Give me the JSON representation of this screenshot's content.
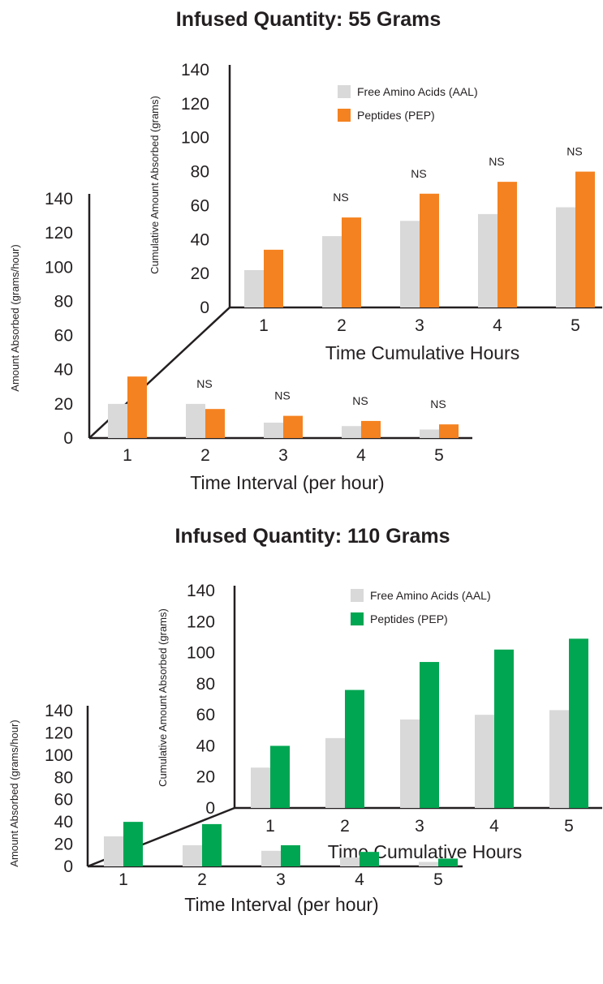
{
  "colors": {
    "aal": "#d9d9d9",
    "pep_55": "#f58220",
    "pep_110": "#00a651",
    "axis": "#231f20"
  },
  "chart_data": [
    {
      "type": "bar",
      "title": "Infused Quantity: 55 Grams",
      "subcharts": {
        "cumulative": {
          "categories": [
            "1",
            "2",
            "3",
            "4",
            "5"
          ],
          "xlabel": "Time Cumulative Hours",
          "ylabel": "Cumulative Amount Absorbed (grams)",
          "ylim": [
            0,
            140
          ],
          "yticks": [
            "0",
            "20",
            "40",
            "60",
            "80",
            "100",
            "120",
            "140"
          ],
          "series": [
            {
              "name": "Free Amino Acids (AAL)",
              "values": [
                22,
                42,
                51,
                55,
                59
              ]
            },
            {
              "name": "Peptides (PEP)",
              "values": [
                34,
                53,
                67,
                74,
                80
              ]
            }
          ],
          "annotations": [
            "",
            "NS",
            "NS",
            "NS",
            "NS"
          ],
          "legend": "top-right"
        },
        "interval": {
          "categories": [
            "1",
            "2",
            "3",
            "4",
            "5"
          ],
          "xlabel": "Time Interval (per hour)",
          "ylabel": "Amount Absorbed (grams/hour)",
          "ylim": [
            0,
            140
          ],
          "yticks": [
            "0",
            "20",
            "40",
            "60",
            "80",
            "100",
            "120",
            "140"
          ],
          "series": [
            {
              "name": "Free Amino Acids (AAL)",
              "values": [
                20,
                20,
                9,
                7,
                5
              ]
            },
            {
              "name": "Peptides (PEP)",
              "values": [
                36,
                17,
                13,
                10,
                8
              ]
            }
          ],
          "annotations": [
            "",
            "NS",
            "NS",
            "NS",
            "NS"
          ]
        }
      }
    },
    {
      "type": "bar",
      "title": "Infused Quantity: 110 Grams",
      "subcharts": {
        "cumulative": {
          "categories": [
            "1",
            "2",
            "3",
            "4",
            "5"
          ],
          "xlabel": "Time Cumulative Hours",
          "ylabel": "Cumulative Amount Absorbed (grams)",
          "ylim": [
            0,
            140
          ],
          "yticks": [
            "0",
            "20",
            "40",
            "60",
            "80",
            "100",
            "120",
            "140"
          ],
          "series": [
            {
              "name": "Free Amino Acids (AAL)",
              "values": [
                26,
                45,
                57,
                60,
                63
              ]
            },
            {
              "name": "Peptides (PEP)",
              "values": [
                40,
                76,
                94,
                102,
                109
              ]
            }
          ],
          "annotations": [
            "",
            "",
            "",
            "",
            ""
          ],
          "legend": "top-right"
        },
        "interval": {
          "categories": [
            "1",
            "2",
            "3",
            "4",
            "5"
          ],
          "xlabel": "Time Interval (per hour)",
          "ylabel": "Amount Absorbed (grams/hour)",
          "ylim": [
            0,
            140
          ],
          "yticks": [
            "0",
            "20",
            "40",
            "60",
            "80",
            "100",
            "120",
            "140"
          ],
          "series": [
            {
              "name": "Free Amino Acids (AAL)",
              "values": [
                27,
                19,
                14,
                8,
                4
              ]
            },
            {
              "name": "Peptides (PEP)",
              "values": [
                40,
                38,
                19,
                13,
                7
              ]
            }
          ],
          "annotations": [
            "",
            "",
            "",
            "",
            ""
          ]
        }
      }
    }
  ]
}
